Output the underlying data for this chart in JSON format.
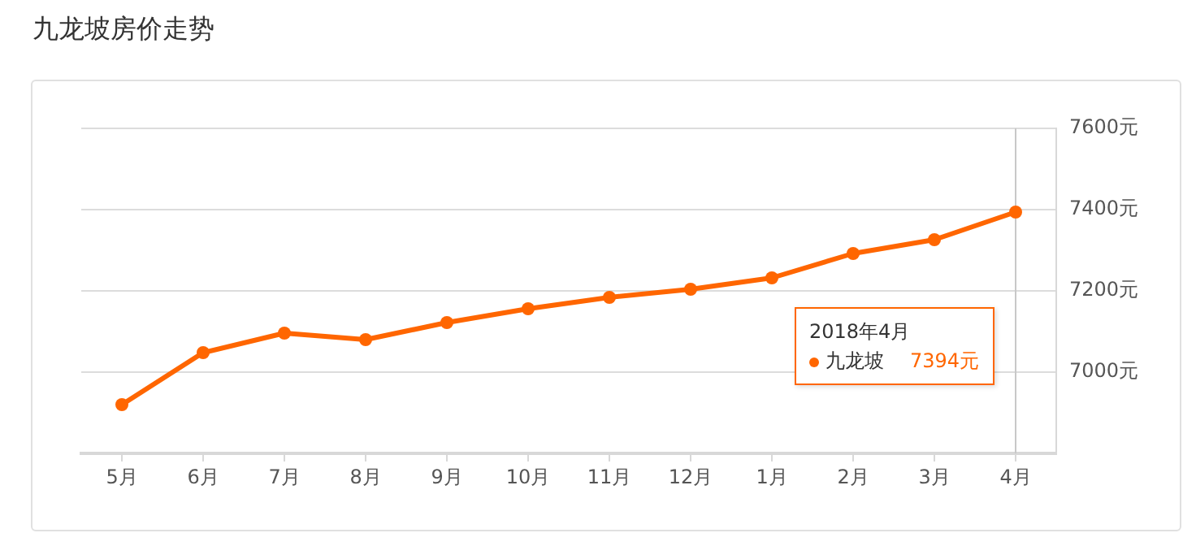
{
  "chart_data": {
    "type": "line",
    "title": "九龙坡房价走势",
    "categories": [
      "5月",
      "6月",
      "7月",
      "8月",
      "9月",
      "10月",
      "11月",
      "12月",
      "1月",
      "2月",
      "3月",
      "4月"
    ],
    "series": [
      {
        "name": "九龙坡",
        "color": "#ff6600",
        "values": [
          6920,
          7048,
          7096,
          7080,
          7122,
          7156,
          7184,
          7204,
          7232,
          7292,
          7326,
          7394
        ]
      }
    ],
    "ylim": [
      6800,
      7600
    ],
    "yticks": [
      {
        "value": 6800,
        "label": null
      },
      {
        "value": 7000,
        "label": "7000元"
      },
      {
        "value": 7200,
        "label": "7200元"
      },
      {
        "value": 7400,
        "label": "7400元"
      },
      {
        "value": 7600,
        "label": "7600元"
      }
    ],
    "grid": "y",
    "marker": "circle",
    "line_style": "solid",
    "legend": "bottom right",
    "ref_lines": [
      {
        "axis": "x",
        "value": "4月",
        "color": "#c8c8c8"
      }
    ],
    "annotations": [
      "2018年4月",
      "7394元"
    ]
  }
}
